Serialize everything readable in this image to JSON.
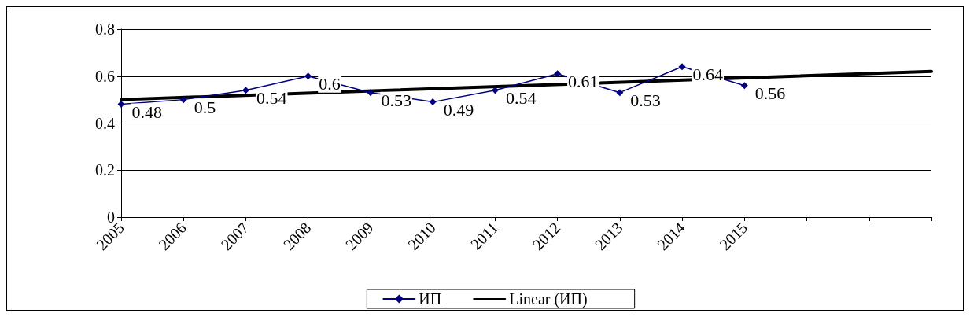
{
  "chart_data": {
    "type": "line",
    "categories": [
      "2005",
      "2006",
      "2007",
      "2008",
      "2009",
      "2010",
      "2011",
      "2012",
      "2013",
      "2014",
      "2015",
      null,
      null,
      null
    ],
    "series": [
      {
        "name": "ИП",
        "color": "#000080",
        "marker": "diamond",
        "data_labels": true,
        "values": [
          0.48,
          0.5,
          0.54,
          0.6,
          0.53,
          0.49,
          0.54,
          0.61,
          0.53,
          0.64,
          0.56,
          null,
          null,
          null
        ]
      },
      {
        "name": "Linear (ИП)",
        "color": "#000000",
        "marker": "none",
        "values": [
          0.5,
          null,
          null,
          null,
          null,
          null,
          null,
          null,
          null,
          null,
          null,
          null,
          null,
          0.62
        ]
      }
    ],
    "ylim": [
      0,
      0.8
    ],
    "yticks": [
      0,
      0.2,
      0.4,
      0.6,
      0.8
    ],
    "grid": "y",
    "legend": "bottom",
    "line_style": "solid"
  }
}
